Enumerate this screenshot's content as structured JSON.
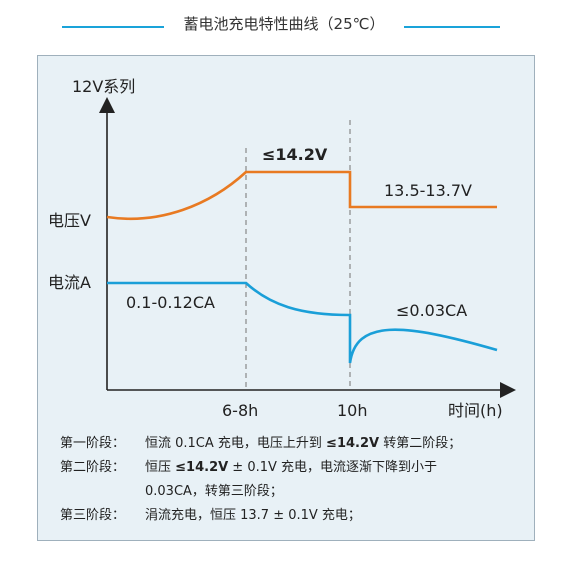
{
  "title": "蓄电池充电特性曲线（25℃）",
  "colors": {
    "accent": "#1aa3d9",
    "voltage": "#e87a22",
    "current": "#1a9fd8",
    "panel_bg": "#e8f1f6"
  },
  "chart": {
    "y_title": "12V系列",
    "voltage_label": "电压V",
    "current_label": "电流A",
    "x_ticks": [
      "6-8h",
      "10h"
    ],
    "x_axis_label": "时间(h)",
    "annotations": {
      "max_voltage": "≤14.2V",
      "float_voltage": "13.5-13.7V",
      "initial_current": "0.1-0.12CA",
      "final_current": "≤0.03CA"
    }
  },
  "legend": [
    {
      "label": "第一阶段：",
      "parts": [
        "恒流 0.1CA 充电，电压上升到 ",
        "≤14.2V",
        " 转第二阶段；"
      ]
    },
    {
      "label": "第二阶段：",
      "parts": [
        "恒压 ",
        "≤14.2V",
        " ± 0.1V 充电，电流逐渐下降到小于"
      ],
      "cont": "0.03CA，转第三阶段；"
    },
    {
      "label": "第三阶段：",
      "parts": [
        "涓流充电，恒压 13.7 ± 0.1V 充电；"
      ]
    }
  ]
}
